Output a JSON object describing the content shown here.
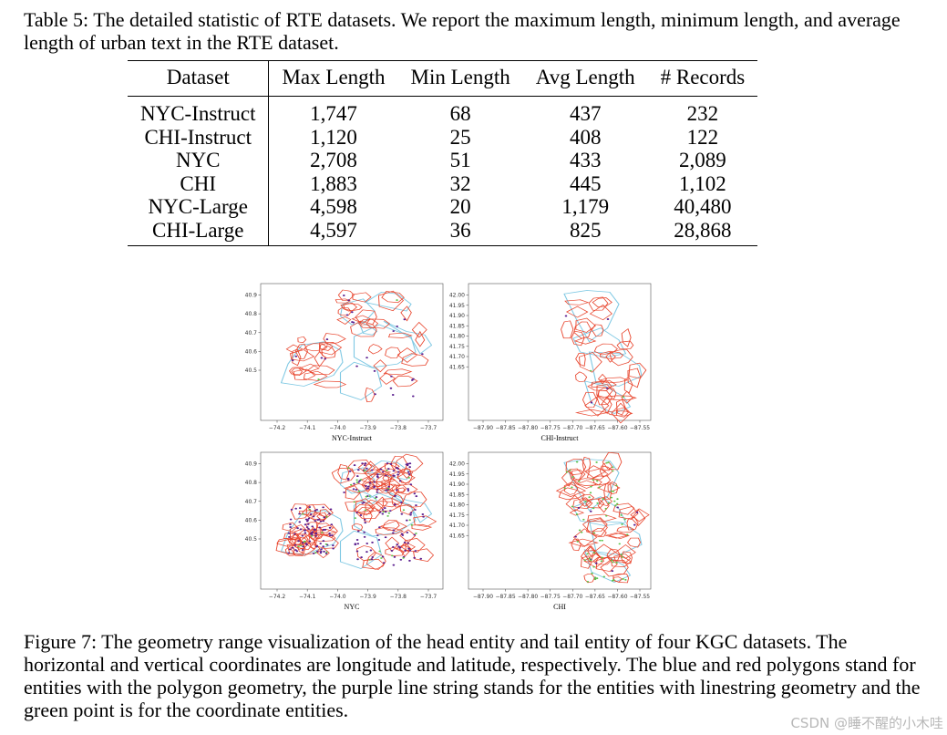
{
  "table": {
    "caption": "Table 5: The detailed statistic of RTE datasets. We report the maximum length, minimum length, and average length of urban text in the RTE dataset.",
    "columns": [
      "Dataset",
      "Max Length",
      "Min Length",
      "Avg Length",
      "# Records"
    ],
    "rows": [
      [
        "NYC-Instruct",
        "1,747",
        "68",
        "437",
        "232"
      ],
      [
        "CHI-Instruct",
        "1,120",
        "25",
        "408",
        "122"
      ],
      [
        "NYC",
        "2,708",
        "51",
        "433",
        "2,089"
      ],
      [
        "CHI",
        "1,883",
        "32",
        "445",
        "1,102"
      ],
      [
        "NYC-Large",
        "4,598",
        "20",
        "1,179",
        "40,480"
      ],
      [
        "CHI-Large",
        "4,597",
        "36",
        "825",
        "28,868"
      ]
    ]
  },
  "figure": {
    "caption": "Figure 7: The geometry range visualization of the head entity and tail entity of four KGC datasets. The horizontal and vertical coordinates are longitude and latitude, respectively. The blue and red polygons stand for entities with the polygon geometry, the purple line string stands for the entities with linestring geometry and the green point is for the coordinate entities.",
    "colors": {
      "polygon_blue": "#7ec8e3",
      "polygon_red": "#e8442c",
      "linestring_purple": "#5b1f8f",
      "point_green": "#5cc44a"
    },
    "panels": [
      {
        "title": "NYC-Instruct",
        "region": "nyc",
        "density": "sparse",
        "x_ticks": [
          "−74.2",
          "−74.1",
          "−74.0",
          "−73.9",
          "−73.8",
          "−73.7"
        ],
        "y_ticks": [
          "40.9",
          "40.8",
          "40.7",
          "40.6",
          "40.5"
        ]
      },
      {
        "title": "CHI-Instruct",
        "region": "chi",
        "density": "sparse",
        "x_ticks": [
          "−87.90",
          "−87.85",
          "−87.80",
          "−87.75",
          "−87.70",
          "−87.65",
          "−87.60",
          "−87.55"
        ],
        "y_ticks": [
          "42.00",
          "41.95",
          "41.90",
          "41.85",
          "41.80",
          "41.75",
          "41.70",
          "41.65"
        ]
      },
      {
        "title": "NYC",
        "region": "nyc",
        "density": "dense",
        "x_ticks": [
          "−74.2",
          "−74.1",
          "−74.0",
          "−73.9",
          "−73.8",
          "−73.7"
        ],
        "y_ticks": [
          "40.9",
          "40.8",
          "40.7",
          "40.6",
          "40.5"
        ]
      },
      {
        "title": "CHI",
        "region": "chi",
        "density": "dense",
        "x_ticks": [
          "−87.90",
          "−87.85",
          "−87.80",
          "−87.75",
          "−87.70",
          "−87.65",
          "−87.60",
          "−87.55"
        ],
        "y_ticks": [
          "42.00",
          "41.95",
          "41.90",
          "41.85",
          "41.80",
          "41.75",
          "41.70",
          "41.65"
        ]
      }
    ]
  },
  "watermark": "CSDN @睡不醒的小木哇"
}
